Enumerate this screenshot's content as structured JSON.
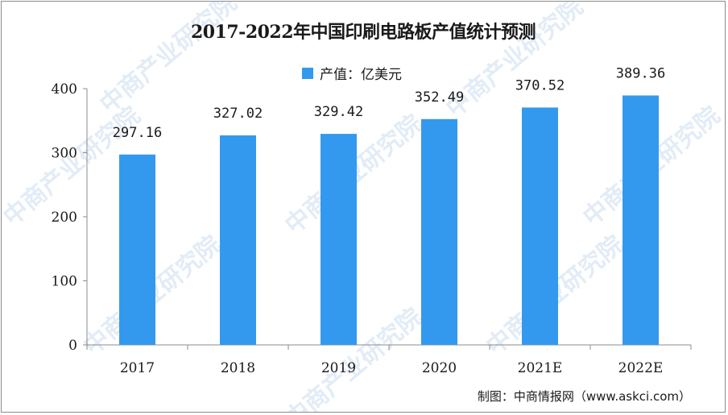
{
  "chart_data": {
    "type": "bar",
    "title": "2017-2022年中国印刷电路板产值统计预测",
    "categories": [
      "2017",
      "2018",
      "2019",
      "2020",
      "2021E",
      "2022E"
    ],
    "series": [
      {
        "name": "产值：亿美元",
        "values": [
          297.16,
          327.02,
          329.42,
          352.49,
          370.52,
          389.36
        ],
        "color": "#3399ee"
      }
    ],
    "data_labels": [
      "297.16",
      "327.02",
      "329.42",
      "352.49",
      "370.52",
      "389.36"
    ],
    "ylim": [
      0,
      400
    ],
    "yticks": [
      "0",
      "100",
      "200",
      "300",
      "400"
    ],
    "xlabel": "",
    "ylabel": "",
    "legend_position": "top",
    "grid": false
  },
  "source": "制图：中商情报网（www.askci.com）",
  "watermark_text": "中商产业研究院"
}
